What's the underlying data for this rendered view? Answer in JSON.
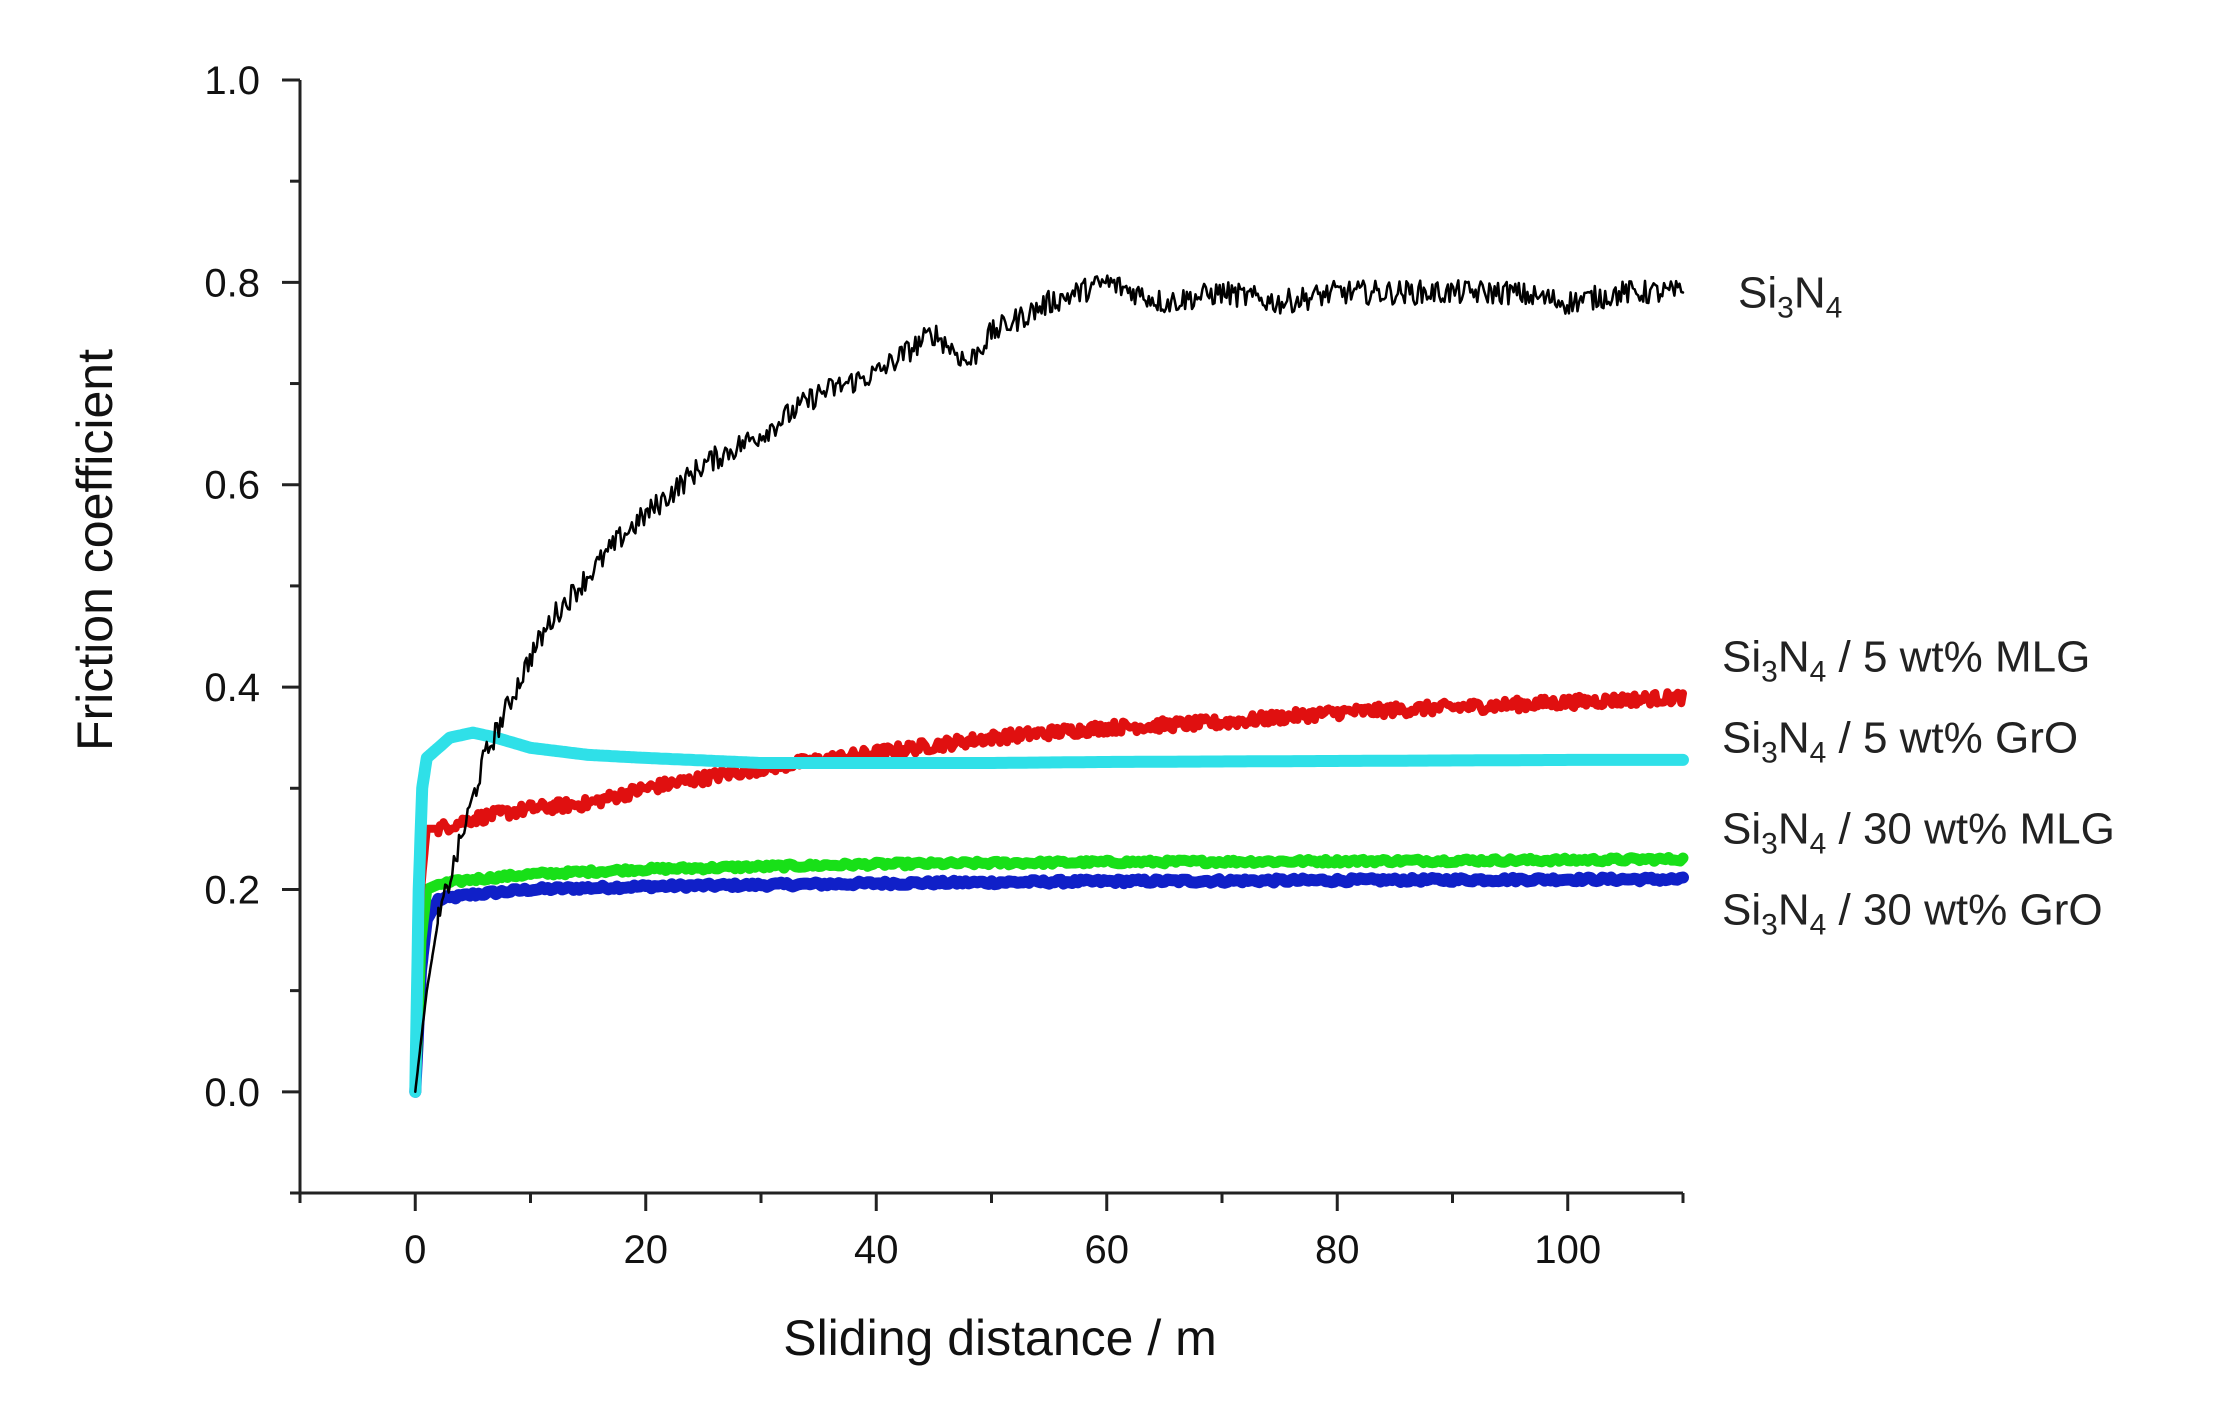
{
  "chart_data": {
    "type": "line",
    "title": "",
    "xlabel": "Sliding distance / m",
    "ylabel": "Friction coefficient",
    "xlim": [
      -10,
      110
    ],
    "ylim": [
      -0.1,
      1.0
    ],
    "xticks": [
      0,
      20,
      40,
      60,
      80,
      100
    ],
    "xtick_labels": [
      "0",
      "20",
      "40",
      "60",
      "80",
      "100"
    ],
    "yticks": [
      0.0,
      0.2,
      0.4,
      0.6,
      0.8,
      1.0
    ],
    "ytick_labels": [
      "0.0",
      "0.2",
      "0.4",
      "0.6",
      "0.8",
      "1.0"
    ],
    "grid": false,
    "series": [
      {
        "name": "Si3N4",
        "label_parts": [
          {
            "t": "Si"
          },
          {
            "t": "3",
            "sub": true
          },
          {
            "t": "N"
          },
          {
            "t": "4",
            "sub": true
          }
        ],
        "color": "#000000",
        "noise": 0.012,
        "x": [
          0,
          1,
          2,
          3,
          4,
          5,
          6,
          8,
          10,
          12,
          15,
          18,
          20,
          25,
          30,
          35,
          40,
          45,
          48,
          50,
          55,
          60,
          65,
          70,
          75,
          80,
          85,
          90,
          95,
          100,
          105,
          110
        ],
        "y": [
          0.0,
          0.1,
          0.17,
          0.21,
          0.25,
          0.29,
          0.33,
          0.38,
          0.43,
          0.47,
          0.51,
          0.55,
          0.57,
          0.62,
          0.65,
          0.69,
          0.71,
          0.75,
          0.72,
          0.75,
          0.78,
          0.8,
          0.78,
          0.79,
          0.78,
          0.79,
          0.79,
          0.79,
          0.79,
          0.78,
          0.79,
          0.79
        ]
      },
      {
        "name": "Si3N4 / 5 wt% MLG",
        "label_parts": [
          {
            "t": "Si"
          },
          {
            "t": "3",
            "sub": true
          },
          {
            "t": "N"
          },
          {
            "t": "4",
            "sub": true
          },
          {
            "t": " / 5 wt% MLG"
          }
        ],
        "color": "#e01010",
        "noise": 0.006,
        "x": [
          0,
          0.5,
          1,
          2,
          5,
          10,
          15,
          20,
          25,
          30,
          40,
          50,
          60,
          70,
          80,
          90,
          100,
          110
        ],
        "y": [
          0.0,
          0.2,
          0.26,
          0.26,
          0.27,
          0.28,
          0.285,
          0.3,
          0.31,
          0.32,
          0.335,
          0.35,
          0.36,
          0.365,
          0.375,
          0.38,
          0.385,
          0.39
        ]
      },
      {
        "name": "Si3N4 / 5 wt% GrO",
        "label_parts": [
          {
            "t": "Si"
          },
          {
            "t": "3",
            "sub": true
          },
          {
            "t": "N"
          },
          {
            "t": "4",
            "sub": true
          },
          {
            "t": " / 5 wt% GrO"
          }
        ],
        "color": "#2fe0e8",
        "noise": 0.0,
        "x": [
          0,
          0.3,
          0.6,
          1,
          2,
          3,
          5,
          7,
          10,
          15,
          20,
          30,
          40,
          50,
          60,
          80,
          100,
          110
        ],
        "y": [
          0.0,
          0.2,
          0.3,
          0.33,
          0.34,
          0.35,
          0.355,
          0.35,
          0.34,
          0.333,
          0.33,
          0.325,
          0.325,
          0.325,
          0.326,
          0.327,
          0.328,
          0.328
        ]
      },
      {
        "name": "Si3N4 / 30 wt% MLG",
        "label_parts": [
          {
            "t": "Si"
          },
          {
            "t": "3",
            "sub": true
          },
          {
            "t": "N"
          },
          {
            "t": "4",
            "sub": true
          },
          {
            "t": " / 30 wt% MLG"
          }
        ],
        "color": "#18e018",
        "noise": 0.002,
        "x": [
          0,
          0.5,
          1,
          2,
          5,
          10,
          20,
          40,
          60,
          80,
          100,
          110
        ],
        "y": [
          0.0,
          0.15,
          0.2,
          0.205,
          0.21,
          0.215,
          0.22,
          0.225,
          0.227,
          0.228,
          0.229,
          0.23
        ]
      },
      {
        "name": "Si3N4 / 30 wt% GrO",
        "label_parts": [
          {
            "t": "Si"
          },
          {
            "t": "3",
            "sub": true
          },
          {
            "t": "N"
          },
          {
            "t": "4",
            "sub": true
          },
          {
            "t": " / 30 wt% GrO"
          }
        ],
        "color": "#1020c8",
        "noise": 0.002,
        "x": [
          0,
          0.5,
          1,
          2,
          5,
          10,
          20,
          40,
          60,
          80,
          100,
          110
        ],
        "y": [
          0.0,
          0.12,
          0.17,
          0.19,
          0.195,
          0.2,
          0.203,
          0.206,
          0.208,
          0.209,
          0.21,
          0.21
        ]
      }
    ],
    "series_label_values": [
      0.79,
      0.43,
      0.35,
      0.26,
      0.18
    ]
  }
}
